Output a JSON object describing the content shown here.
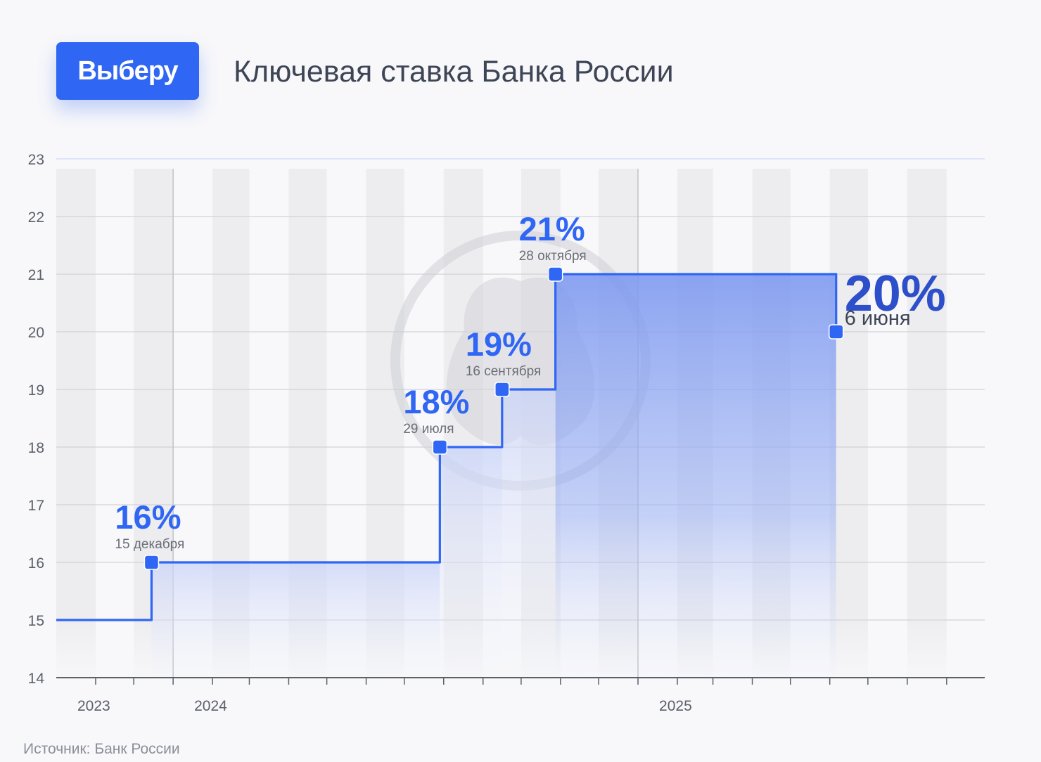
{
  "brand": {
    "logo_text": "Выберу",
    "accent": "#2f66f4",
    "dark_accent": "#2d4fc9"
  },
  "page_title": "Ключевая ставка Банка России",
  "source_note": "Источник: Банк России",
  "chart_data": {
    "type": "line",
    "subtype": "step",
    "ylim": [
      14,
      23
    ],
    "y_ticks": [
      "14",
      "15",
      "16",
      "17",
      "18",
      "19",
      "20",
      "21",
      "22",
      "23"
    ],
    "x_range": [
      "2023-10-01",
      "2025-10-01"
    ],
    "year_labels": [
      {
        "label": "2023",
        "date": "2023-10-01"
      },
      {
        "label": "2024",
        "date": "2024-01-01"
      },
      {
        "label": "2025",
        "date": "2025-01-01"
      }
    ],
    "year_dividers": [
      "2024-01-01",
      "2025-01-01"
    ],
    "series": [
      {
        "points": [
          {
            "date": "2023-10-01",
            "value": 15
          },
          {
            "date": "2023-12-15",
            "value": 16
          },
          {
            "date": "2024-07-29",
            "value": 18
          },
          {
            "date": "2024-09-16",
            "value": 19
          },
          {
            "date": "2024-10-28",
            "value": 21
          },
          {
            "date": "2025-06-06",
            "value": 20
          }
        ]
      }
    ],
    "markers": [
      {
        "date": "2023-12-15",
        "value": 16,
        "rate_label": "16%",
        "date_label": "15 декабря"
      },
      {
        "date": "2024-07-29",
        "value": 18,
        "rate_label": "18%",
        "date_label": "29 июля"
      },
      {
        "date": "2024-09-16",
        "value": 19,
        "rate_label": "19%",
        "date_label": "16 сентября"
      },
      {
        "date": "2024-10-28",
        "value": 21,
        "rate_label": "21%",
        "date_label": "28 октября"
      },
      {
        "date": "2025-06-06",
        "value": 20,
        "rate_label": "20%",
        "date_label": "6 июня"
      }
    ],
    "grid": true
  }
}
